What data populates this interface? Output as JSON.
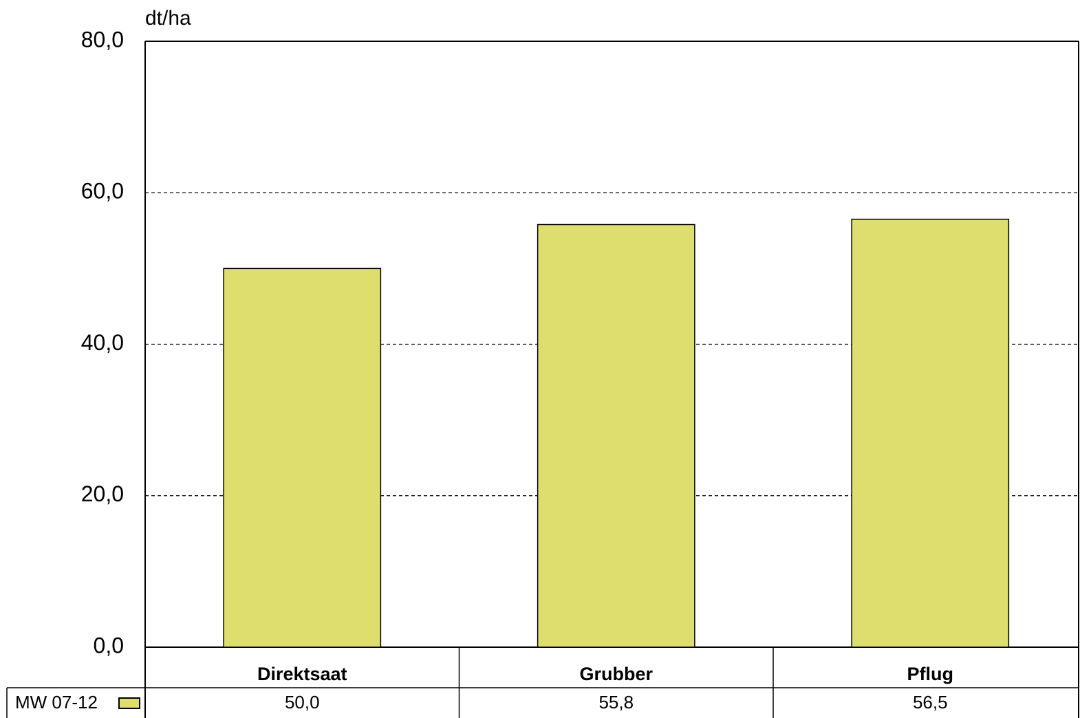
{
  "chart_data": {
    "type": "bar",
    "y_label": "dt/ha",
    "categories": [
      "Direktsaat",
      "Grubber",
      "Pflug"
    ],
    "series": [
      {
        "name": "MW 07-12",
        "color": "#dede6e",
        "values": [
          50.0,
          55.8,
          56.5
        ],
        "value_labels": [
          "50,0",
          "55,8",
          "56,5"
        ]
      }
    ],
    "ylim": [
      0,
      80
    ],
    "yticks": [
      {
        "value": 0,
        "label": "0,0"
      },
      {
        "value": 20,
        "label": "20,0"
      },
      {
        "value": 40,
        "label": "40,0"
      },
      {
        "value": 60,
        "label": "60,0"
      },
      {
        "value": 80,
        "label": "80,0"
      }
    ],
    "grid": true
  }
}
